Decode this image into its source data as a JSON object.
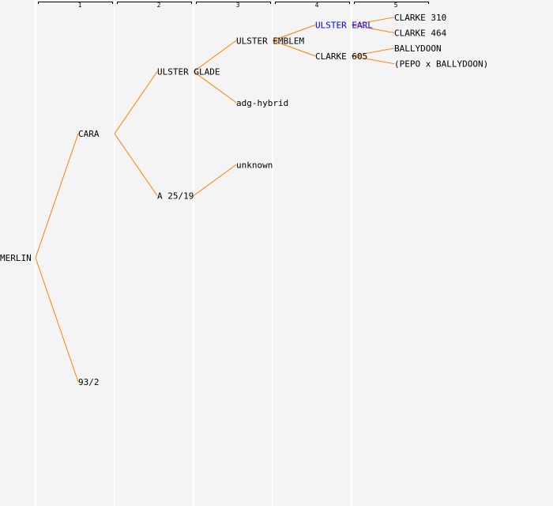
{
  "generation_headers": [
    "1",
    "2",
    "3",
    "4",
    "5"
  ],
  "colors": {
    "background": "#f4f4f4",
    "column_line": "#ffffff",
    "edge": "#ff8000",
    "text": "#000000",
    "highlight": "#0000ff"
  },
  "pedigree": {
    "name": "MERLIN",
    "sire": {
      "name": "CARA",
      "sire": {
        "name": "ULSTER GLADE",
        "sire": {
          "name": "ULSTER EMBLEM",
          "sire": {
            "name": "ULSTER EARL",
            "highlight": true,
            "sire": {
              "name": "CLARKE 310"
            },
            "dam": {
              "name": "CLARKE 464"
            }
          },
          "dam": {
            "name": "CLARKE 605",
            "sire": {
              "name": "BALLYDOON"
            },
            "dam": {
              "name": "(PEPO x BALLYDOON)"
            }
          }
        },
        "dam": {
          "name": "adg-hybrid"
        }
      },
      "dam": {
        "name": "A 25/19",
        "sire": {
          "name": "unknown"
        }
      }
    },
    "dam": {
      "name": "93/2"
    }
  }
}
